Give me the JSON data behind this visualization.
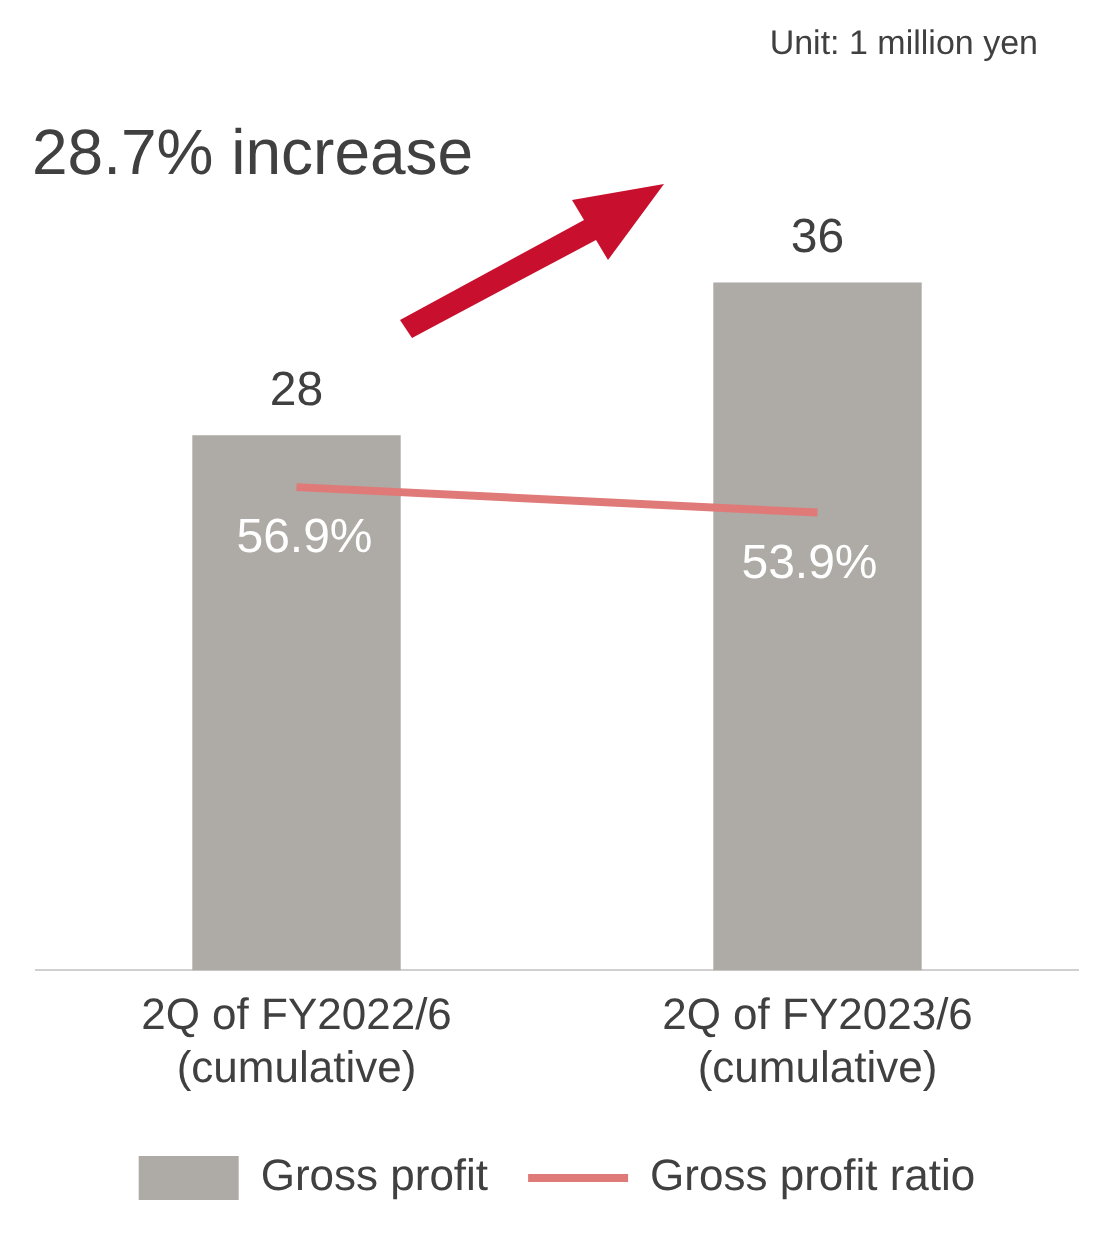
{
  "chart_data": {
    "type": "bar",
    "categories": [
      "2Q of FY2022/6\n(cumulative)",
      "2Q of FY2023/6\n(cumulative)"
    ],
    "series": [
      {
        "name": "Gross profit",
        "color": "#aeaaa5",
        "values": [
          28,
          36
        ]
      },
      {
        "name": "Gross profit ratio",
        "type": "line",
        "axis": "y2",
        "color": "#e07a78",
        "values": [
          56.9,
          53.9
        ],
        "value_labels": [
          "56.9%",
          "53.9%"
        ]
      }
    ],
    "data_labels": true,
    "legend": "bottom",
    "grid": false,
    "annotations": [
      "Unit: 1 million yen",
      "28.7% increase"
    ]
  }
}
